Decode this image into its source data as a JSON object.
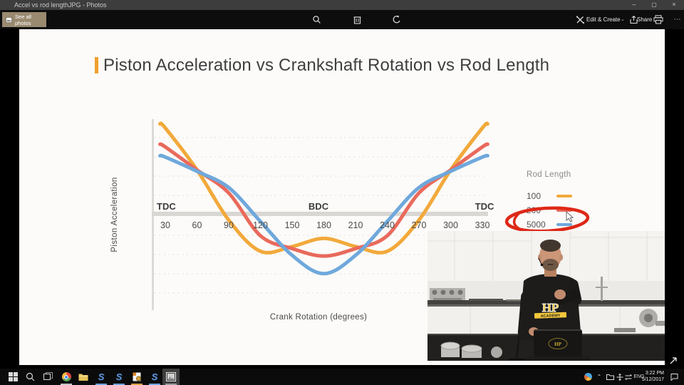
{
  "window": {
    "title": "Accel vs rod lengthJPG - Photos",
    "see_all_photos": "See all photos",
    "controls": [
      "minimize",
      "maximize",
      "close"
    ],
    "toolbar": {
      "center_icons": [
        "zoom-icon",
        "delete-icon",
        "rotate-icon"
      ],
      "edit_create": "Edit & Create",
      "share": "Share",
      "right_icons": [
        "print-icon",
        "more-icon"
      ]
    }
  },
  "slide": {
    "title": "Piston Acceleration vs Crankshaft Rotation vs Rod Length",
    "ylabel": "Piston Acceleration",
    "xlabel": "Crank Rotation (degrees)",
    "markers": {
      "left": "TDC",
      "center": "BDC",
      "right": "TDC"
    },
    "accent_color": "#f0a030"
  },
  "chart_data": {
    "type": "line",
    "title": "Piston Acceleration vs Crankshaft Rotation vs Rod Length",
    "xlabel": "Crank Rotation (degrees)",
    "ylabel": "Piston Acceleration (relative)",
    "x": [
      25,
      30,
      60,
      90,
      120,
      150,
      180,
      210,
      240,
      270,
      300,
      330,
      335
    ],
    "x_ticks": [
      30,
      60,
      90,
      120,
      150,
      180,
      210,
      240,
      270,
      300,
      330
    ],
    "annotations": [
      {
        "text": "TDC",
        "x": 30
      },
      {
        "text": "BDC",
        "x": 180
      },
      {
        "text": "TDC",
        "x": 330
      },
      {
        "shape": "hand-drawn-red-ellipse",
        "around": "legend item 5000",
        "color": "#de2817"
      }
    ],
    "grid": "dotted horizontal",
    "legend_position": "right",
    "series": [
      {
        "name": "100",
        "color": "#f2a93b",
        "values": [
          1.36,
          1.3,
          0.68,
          -0.06,
          -0.52,
          -0.45,
          -0.33,
          -0.45,
          -0.52,
          -0.06,
          0.68,
          1.3,
          1.36
        ]
      },
      {
        "name": "200",
        "color": "#e96a5c",
        "values": [
          1.06,
          1.02,
          0.68,
          0.34,
          -0.29,
          -0.48,
          -0.59,
          -0.48,
          -0.29,
          0.34,
          0.68,
          1.02,
          1.06
        ]
      },
      {
        "name": "5000",
        "color": "#6fa8dc",
        "values": [
          0.89,
          0.87,
          0.66,
          0.42,
          -0.08,
          -0.58,
          -0.85,
          -0.58,
          -0.08,
          0.42,
          0.66,
          0.87,
          0.89
        ]
      }
    ]
  },
  "legend": {
    "title": "Rod Length",
    "items": [
      {
        "label": "100",
        "color": "#f2a93b"
      },
      {
        "label": "200",
        "color": "#e96a5c"
      },
      {
        "label": "5000",
        "color": "#6fa8dc",
        "annotated": true
      }
    ]
  },
  "video_overlay": {
    "shirt_logo": "HP",
    "shirt_sublabel": "ACADEMY",
    "laptop_logo": "HP"
  },
  "taskbar": {
    "apps": [
      {
        "name": "start",
        "running": false
      },
      {
        "name": "search",
        "running": false
      },
      {
        "name": "task-view",
        "running": false
      },
      {
        "name": "chrome",
        "running": true
      },
      {
        "name": "file-explorer",
        "running": false
      },
      {
        "name": "solidworks-1",
        "running": true
      },
      {
        "name": "solidworks-2",
        "running": true
      },
      {
        "name": "document-app",
        "running": true
      },
      {
        "name": "solidworks-3",
        "running": true
      },
      {
        "name": "photos",
        "running": true,
        "active": true
      }
    ],
    "tray": {
      "icons": [
        "browser-circle-icon",
        "chevron-up-icon",
        "folder-icon",
        "move-cross-icon",
        "input-switch-icon"
      ],
      "language": "ENG",
      "time": "3:22 PM",
      "date": "5/12/2017",
      "action_center": "notification-icon"
    }
  }
}
